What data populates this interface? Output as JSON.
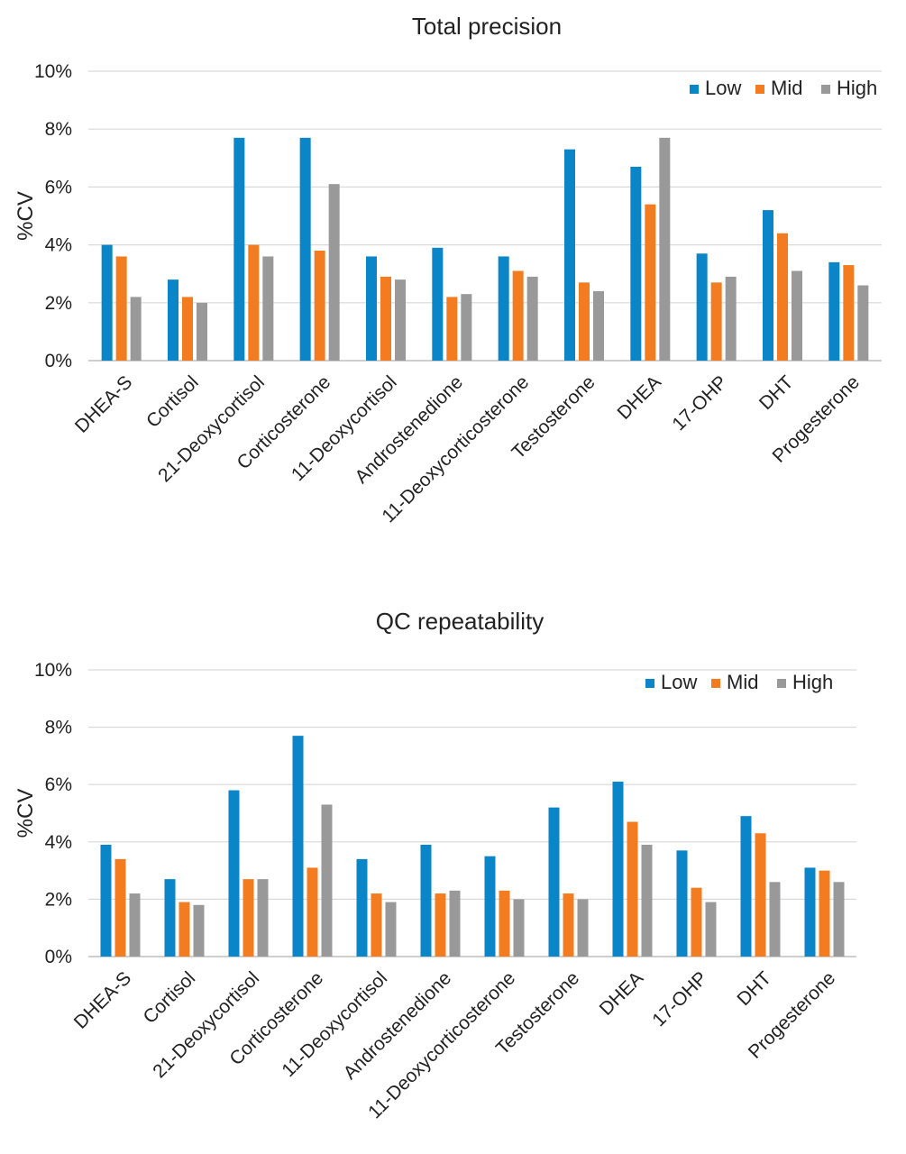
{
  "chart_data": [
    {
      "type": "bar",
      "title": "Total precision",
      "xlabel": "",
      "ylabel": "%CV",
      "ylim": [
        0,
        10
      ],
      "yticks": [
        "0%",
        "2%",
        "4%",
        "6%",
        "8%",
        "10%"
      ],
      "legend_position": "top-right",
      "grid": true,
      "categories": [
        "DHEA-S",
        "Cortisol",
        "21-Deoxycortisol",
        "Corticosterone",
        "11-Deoxycortisol",
        "Androstenedione",
        "11-Deoxycorticosterone",
        "Testosterone",
        "DHEA",
        "17-OHP",
        "DHT",
        "Progesterone"
      ],
      "series": [
        {
          "name": "Low",
          "color": "#0a86c8",
          "values": [
            4.0,
            2.8,
            7.7,
            7.7,
            3.6,
            3.9,
            3.6,
            7.3,
            6.7,
            3.7,
            5.2,
            3.4
          ]
        },
        {
          "name": "Mid",
          "color": "#f47c20",
          "values": [
            3.6,
            2.2,
            4.0,
            3.8,
            2.9,
            2.2,
            3.1,
            2.7,
            5.4,
            2.7,
            4.4,
            3.3
          ]
        },
        {
          "name": "High",
          "color": "#999999",
          "values": [
            2.2,
            2.0,
            3.6,
            6.1,
            2.8,
            2.3,
            2.9,
            2.4,
            7.7,
            2.9,
            3.1,
            2.6
          ]
        }
      ]
    },
    {
      "type": "bar",
      "title": "QC repeatability",
      "xlabel": "",
      "ylabel": "%CV",
      "ylim": [
        0,
        10
      ],
      "yticks": [
        "0%",
        "2%",
        "4%",
        "6%",
        "8%",
        "10%"
      ],
      "legend_position": "top-right",
      "grid": true,
      "categories": [
        "DHEA-S",
        "Cortisol",
        "21-Deoxycortisol",
        "Corticosterone",
        "11-Deoxycortisol",
        "Androstenedione",
        "11-Deoxycorticosterone",
        "Testosterone",
        "DHEA",
        "17-OHP",
        "DHT",
        "Progesterone"
      ],
      "series": [
        {
          "name": "Low",
          "color": "#0a86c8",
          "values": [
            3.9,
            2.7,
            5.8,
            7.7,
            3.4,
            3.9,
            3.5,
            5.2,
            6.1,
            3.7,
            4.9,
            3.1
          ]
        },
        {
          "name": "Mid",
          "color": "#f47c20",
          "values": [
            3.4,
            1.9,
            2.7,
            3.1,
            2.2,
            2.2,
            2.3,
            2.2,
            4.7,
            2.4,
            4.3,
            3.0
          ]
        },
        {
          "name": "High",
          "color": "#999999",
          "values": [
            2.2,
            1.8,
            2.7,
            5.3,
            1.9,
            2.3,
            2.0,
            2.0,
            3.9,
            1.9,
            2.6,
            2.6
          ]
        }
      ]
    }
  ]
}
